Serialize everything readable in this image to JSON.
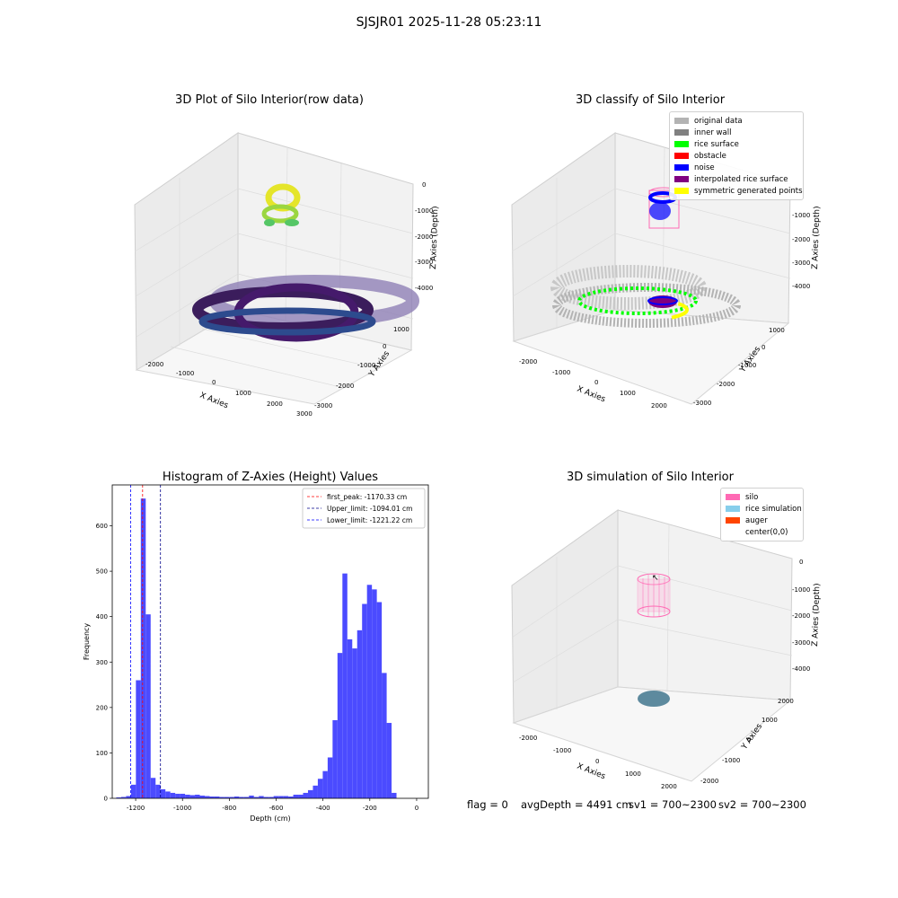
{
  "figure": {
    "title": "SJSJR01 2025-11-28 05:23:11"
  },
  "panel_raw": {
    "title": "3D Plot of Silo Interior(row data)",
    "xlabel": "X Axies",
    "ylabel": "Y Axies",
    "zlabel": "Z Axies (Depth)",
    "x_ticks": [
      "-2000",
      "-1000",
      "0",
      "1000",
      "2000",
      "3000"
    ],
    "y_ticks": [
      "1000",
      "0",
      "-1000",
      "-2000",
      "-3000"
    ],
    "z_ticks": [
      "0",
      "-1000",
      "-2000",
      "-3000",
      "-4000"
    ]
  },
  "panel_classify": {
    "title": "3D classify of Silo Interior",
    "xlabel": "X Axies",
    "ylabel": "Y Axies",
    "zlabel": "Z Axies (Depth)",
    "x_ticks": [
      "-2000",
      "-1000",
      "0",
      "1000",
      "2000"
    ],
    "y_ticks": [
      "1000",
      "0",
      "-1000",
      "-2000",
      "-3000"
    ],
    "z_ticks": [
      "0",
      "-1000",
      "-2000",
      "-3000",
      "-4000"
    ],
    "legend": [
      {
        "label": "original data",
        "color": "#b3b3b3"
      },
      {
        "label": "inner wall",
        "color": "#808080"
      },
      {
        "label": "rice surface",
        "color": "#00ff00"
      },
      {
        "label": "obstacle",
        "color": "#ff0000"
      },
      {
        "label": "noise",
        "color": "#0000ff"
      },
      {
        "label": "interpolated rice surface",
        "color": "#800080"
      },
      {
        "label": "symmetric generated points",
        "color": "#ffff00"
      }
    ]
  },
  "panel_sim": {
    "title": "3D simulation of Silo Interior",
    "xlabel": "X Axies",
    "ylabel": "Y Axies",
    "zlabel": "Z Axies (Depth)",
    "x_ticks": [
      "-2000",
      "-1000",
      "0",
      "1000",
      "2000"
    ],
    "y_ticks": [
      "2000",
      "1000",
      "0",
      "-1000",
      "-2000"
    ],
    "z_ticks": [
      "0",
      "-1000",
      "-2000",
      "-3000",
      "-4000"
    ],
    "legend": [
      {
        "label": "silo",
        "color": "#ff69b4"
      },
      {
        "label": "rice simulation",
        "color": "#87ceeb"
      },
      {
        "label": "auger",
        "color": "#ff4500"
      },
      {
        "label": "center(0,0)",
        "color": ""
      }
    ],
    "status": {
      "flag": "flag = 0",
      "avg": "avgDepth = 4491 cm",
      "sv1": "sv1 = 700~2300",
      "sv2": "sv2 = 700~2300"
    }
  },
  "chart_data": {
    "type": "bar",
    "title": "Histogram of Z-Axies (Height) Values",
    "xlabel": "Depth (cm)",
    "ylabel": "Frequency",
    "xlim": [
      -1300,
      50
    ],
    "ylim": [
      0,
      690
    ],
    "x_ticks": [
      -1200,
      -1000,
      -800,
      -600,
      -400,
      -200,
      0
    ],
    "y_ticks": [
      0,
      100,
      200,
      300,
      400,
      500,
      600
    ],
    "bar_color": "#4b4bff",
    "bin_width": 21,
    "bins": [
      {
        "start": -1283,
        "count": 2
      },
      {
        "start": -1262,
        "count": 3
      },
      {
        "start": -1241,
        "count": 5
      },
      {
        "start": -1220,
        "count": 30
      },
      {
        "start": -1199,
        "count": 260
      },
      {
        "start": -1178,
        "count": 660
      },
      {
        "start": -1157,
        "count": 405
      },
      {
        "start": -1136,
        "count": 45
      },
      {
        "start": -1115,
        "count": 30
      },
      {
        "start": -1094,
        "count": 20
      },
      {
        "start": -1073,
        "count": 15
      },
      {
        "start": -1052,
        "count": 12
      },
      {
        "start": -1031,
        "count": 10
      },
      {
        "start": -1010,
        "count": 10
      },
      {
        "start": -989,
        "count": 8
      },
      {
        "start": -968,
        "count": 7
      },
      {
        "start": -947,
        "count": 8
      },
      {
        "start": -926,
        "count": 6
      },
      {
        "start": -905,
        "count": 5
      },
      {
        "start": -884,
        "count": 4
      },
      {
        "start": -863,
        "count": 4
      },
      {
        "start": -842,
        "count": 3
      },
      {
        "start": -821,
        "count": 3
      },
      {
        "start": -800,
        "count": 3
      },
      {
        "start": -779,
        "count": 4
      },
      {
        "start": -758,
        "count": 3
      },
      {
        "start": -737,
        "count": 3
      },
      {
        "start": -716,
        "count": 6
      },
      {
        "start": -695,
        "count": 3
      },
      {
        "start": -674,
        "count": 5
      },
      {
        "start": -653,
        "count": 3
      },
      {
        "start": -632,
        "count": 3
      },
      {
        "start": -611,
        "count": 5
      },
      {
        "start": -590,
        "count": 5
      },
      {
        "start": -569,
        "count": 5
      },
      {
        "start": -548,
        "count": 4
      },
      {
        "start": -527,
        "count": 8
      },
      {
        "start": -506,
        "count": 8
      },
      {
        "start": -485,
        "count": 12
      },
      {
        "start": -464,
        "count": 18
      },
      {
        "start": -443,
        "count": 28
      },
      {
        "start": -422,
        "count": 43
      },
      {
        "start": -401,
        "count": 60
      },
      {
        "start": -380,
        "count": 90
      },
      {
        "start": -359,
        "count": 172
      },
      {
        "start": -338,
        "count": 320
      },
      {
        "start": -317,
        "count": 495
      },
      {
        "start": -296,
        "count": 350
      },
      {
        "start": -275,
        "count": 330
      },
      {
        "start": -254,
        "count": 370
      },
      {
        "start": -233,
        "count": 428
      },
      {
        "start": -212,
        "count": 470
      },
      {
        "start": -191,
        "count": 460
      },
      {
        "start": -170,
        "count": 432
      },
      {
        "start": -149,
        "count": 276
      },
      {
        "start": -128,
        "count": 166
      },
      {
        "start": -107,
        "count": 12
      }
    ],
    "vlines": [
      {
        "label": "first_peak: -1170.33 cm",
        "x": -1170.33,
        "color": "#ff0000"
      },
      {
        "label": "Upper_limit: -1094.01 cm",
        "x": -1094.01,
        "color": "#00008b"
      },
      {
        "label": "Lower_limit: -1221.22 cm",
        "x": -1221.22,
        "color": "#0000ff"
      }
    ],
    "legend_position": "top-right"
  }
}
